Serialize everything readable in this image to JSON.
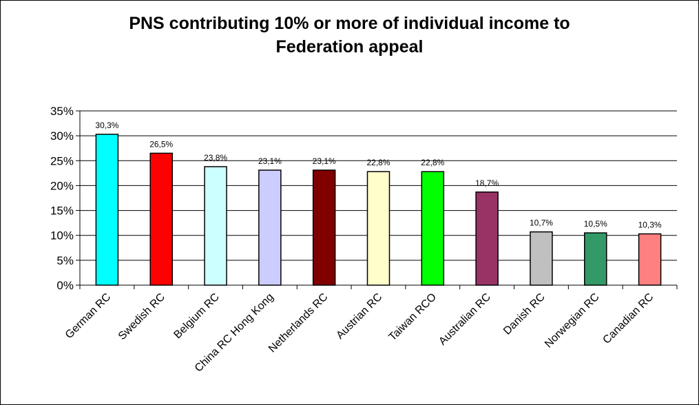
{
  "chart_data": {
    "type": "bar",
    "title_lines": [
      "PNS contributing 10% or more of individual income to",
      "Federation appeal"
    ],
    "categories": [
      "German RC",
      "Swedish RC",
      "Belgium RC",
      "China RC Hong Kong",
      "Netherlands RC",
      "Austrian RC",
      "Taiwan RCO",
      "Australian RC",
      "Danish RC",
      "Norwegian RC",
      "Canadian RC"
    ],
    "values": [
      30.3,
      26.5,
      23.8,
      23.1,
      23.1,
      22.8,
      22.8,
      18.7,
      10.7,
      10.5,
      10.3
    ],
    "data_labels": [
      "30,3%",
      "26,5%",
      "23,8%",
      "23,1%",
      "23,1%",
      "22,8%",
      "22,8%",
      "18,7%",
      "10,7%",
      "10,5%",
      "10,3%"
    ],
    "bar_colors": [
      "#00FFFF",
      "#FF0000",
      "#CCFFFF",
      "#CCCCFF",
      "#800000",
      "#FFFFCC",
      "#00FF00",
      "#993366",
      "#C0C0C0",
      "#339966",
      "#FF8080"
    ],
    "y_ticks": [
      "0%",
      "5%",
      "10%",
      "15%",
      "20%",
      "25%",
      "30%",
      "35%"
    ],
    "ylim": [
      0,
      35
    ],
    "grid": true,
    "legend": "none",
    "xlabel": "",
    "ylabel": ""
  }
}
